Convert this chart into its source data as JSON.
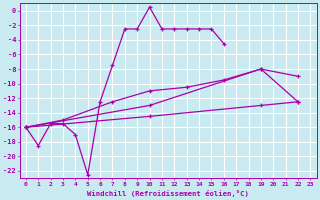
{
  "xlabel": "Windchill (Refroidissement éolien,°C)",
  "background_color": "#c8eaf0",
  "grid_color": "#ffffff",
  "line_color": "#aa00aa",
  "series1_x": [
    0,
    1,
    2,
    3,
    4,
    5,
    6,
    7,
    8,
    9,
    10,
    11,
    12,
    13,
    14,
    15,
    16
  ],
  "series1_y": [
    -16,
    -18.5,
    -15.5,
    -15.5,
    -17,
    -22.5,
    -12.5,
    -7.5,
    -2.5,
    -2.5,
    0.5,
    -2.5,
    -2.5,
    -2.5,
    -2.5,
    -2.5,
    -4.5
  ],
  "series2_x": [
    0,
    3,
    7,
    10,
    13,
    16,
    19,
    22
  ],
  "series2_y": [
    -16,
    -15,
    -12.5,
    -11,
    -10.5,
    -9.5,
    -8,
    -12.5
  ],
  "series3_x": [
    0,
    10,
    19,
    22
  ],
  "series3_y": [
    -16,
    -13,
    -8,
    -9
  ],
  "series4_x": [
    0,
    10,
    19,
    22
  ],
  "series4_y": [
    -16,
    -14.5,
    -13,
    -12.5
  ],
  "ylim": [
    -23,
    1
  ],
  "xlim": [
    -0.5,
    23.5
  ],
  "yticks": [
    0,
    -2,
    -4,
    -6,
    -8,
    -10,
    -12,
    -14,
    -16,
    -18,
    -20,
    -22
  ],
  "ytick_labels": [
    "0",
    "-2",
    "-4",
    "-6",
    "-8",
    "-10",
    "-12",
    "-14",
    "-16",
    "-18",
    "-20",
    "-22"
  ],
  "xtick_labels": [
    "0",
    "1",
    "2",
    "3",
    "4",
    "5",
    "6",
    "7",
    "8",
    "9",
    "10",
    "11",
    "12",
    "13",
    "14",
    "15",
    "16",
    "17",
    "18",
    "19",
    "20",
    "21",
    "22",
    "23"
  ]
}
